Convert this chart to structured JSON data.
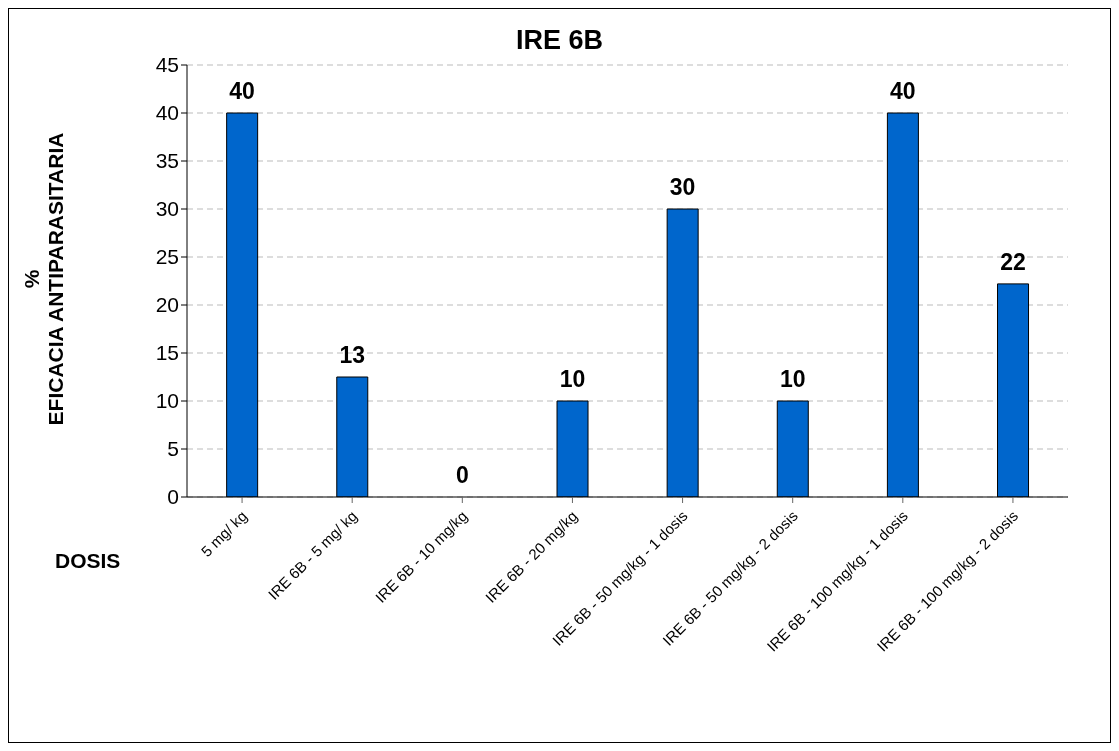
{
  "chart_data": {
    "type": "bar",
    "title": "IRE 6B",
    "xlabel": "DOSIS",
    "ylabel": "%\nEFICACIA ANTIPARASITARIA",
    "categories": [
      "5 mg/ kg",
      "IRE 6B - 5 mg/ kg",
      "IRE 6B - 10 mg/kg",
      "IRE 6B - 20 mg/kg",
      "IRE 6B - 50 mg/kg - 1 dosis",
      "IRE 6B - 50 mg/kg - 2 dosis",
      "IRE 6B - 100 mg/kg - 1 dosis",
      "IRE 6B - 100 mg/kg - 2 dosis"
    ],
    "values": [
      40,
      12.5,
      0,
      10,
      30,
      10,
      40,
      22.2
    ],
    "value_labels": [
      "40",
      "13",
      "0",
      "10",
      "30",
      "10",
      "40",
      "22"
    ],
    "color": "#0066cc",
    "ylim": [
      0,
      45
    ],
    "yticks": [
      0,
      5,
      10,
      15,
      20,
      25,
      30,
      35,
      40,
      45
    ],
    "grid": "y"
  }
}
